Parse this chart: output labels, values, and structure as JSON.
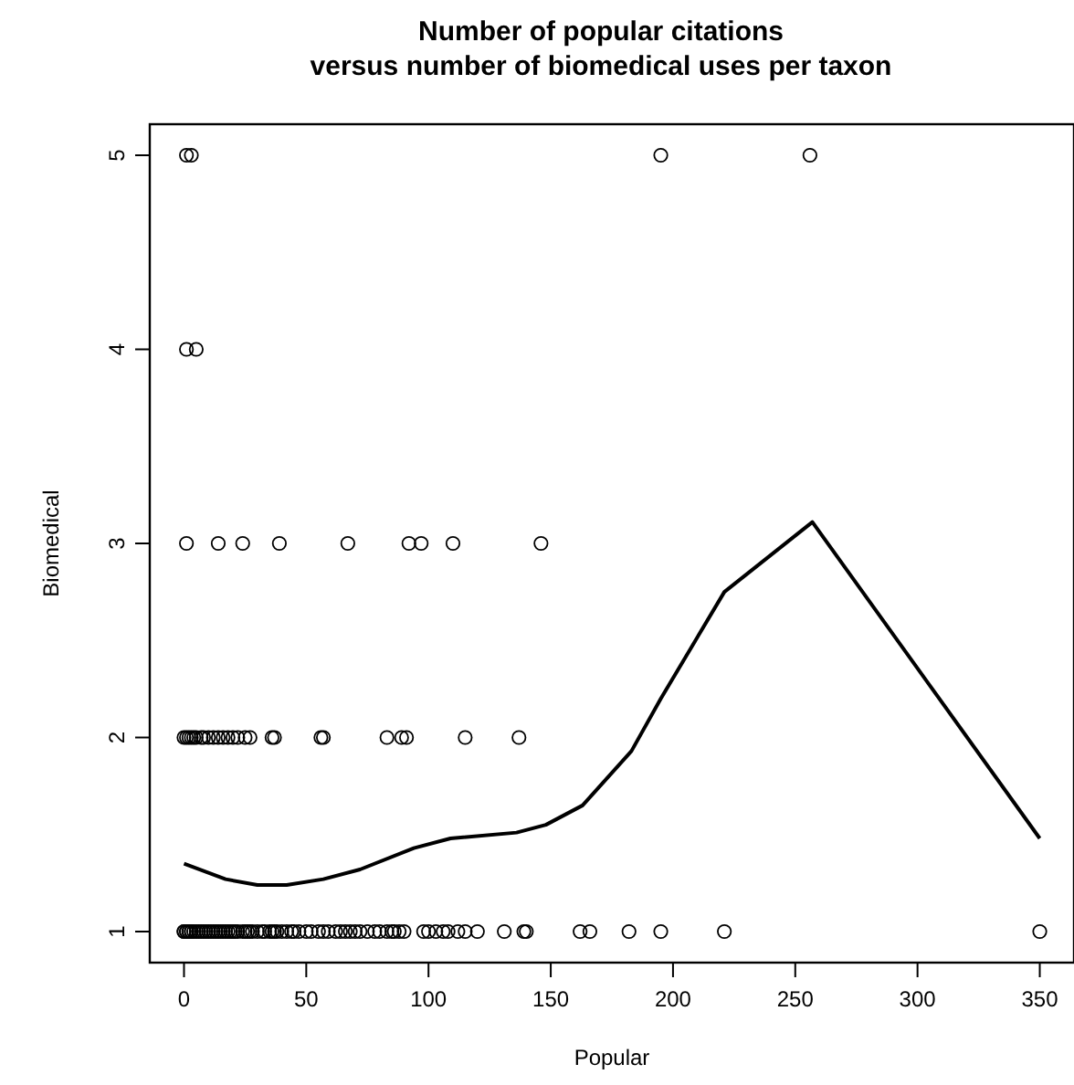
{
  "chart_data": {
    "type": "scatter",
    "title": "Number of popular citations\nversus number of biomedical uses per taxon",
    "xlabel": "Popular",
    "ylabel": "Biomedical",
    "xlim": [
      -14,
      364
    ],
    "ylim": [
      0.84,
      5.16
    ],
    "xticks": [
      0,
      50,
      100,
      150,
      200,
      250,
      300,
      350
    ],
    "yticks": [
      1,
      2,
      3,
      4,
      5
    ],
    "grid": false,
    "marker": "circle",
    "series": [
      {
        "color": "#000000",
        "x": [
          1,
          3,
          195,
          256,
          1,
          5,
          1,
          14,
          24,
          39,
          67,
          92,
          97,
          110,
          146,
          0,
          1,
          2,
          3,
          4,
          5,
          7,
          8,
          10,
          12,
          14,
          16,
          18,
          20,
          22,
          25,
          27,
          36,
          37,
          56,
          57,
          83,
          89,
          91,
          115,
          137,
          0,
          0,
          1,
          1,
          2,
          2,
          3,
          3,
          4,
          5,
          6,
          7,
          8,
          9,
          10,
          11,
          12,
          13,
          14,
          15,
          16,
          17,
          18,
          19,
          20,
          21,
          22,
          24,
          25,
          26,
          27,
          28,
          30,
          32,
          33,
          35,
          36,
          37,
          38,
          40,
          42,
          44,
          45,
          47,
          50,
          52,
          55,
          57,
          59,
          62,
          64,
          66,
          68,
          70,
          72,
          75,
          78,
          80,
          83,
          85,
          86,
          88,
          90,
          98,
          100,
          103,
          106,
          108,
          112,
          115,
          120,
          131,
          139,
          140,
          162,
          166,
          182,
          195,
          221,
          350
        ],
        "values": [
          5,
          5,
          5,
          5,
          4,
          4,
          3,
          3,
          3,
          3,
          3,
          3,
          3,
          3,
          3,
          2,
          2,
          2,
          2,
          2,
          2,
          2,
          2,
          2,
          2,
          2,
          2,
          2,
          2,
          2,
          2,
          2,
          2,
          2,
          2,
          2,
          2,
          2,
          2,
          2,
          2,
          1,
          1,
          1,
          1,
          1,
          1,
          1,
          1,
          1,
          1,
          1,
          1,
          1,
          1,
          1,
          1,
          1,
          1,
          1,
          1,
          1,
          1,
          1,
          1,
          1,
          1,
          1,
          1,
          1,
          1,
          1,
          1,
          1,
          1,
          1,
          1,
          1,
          1,
          1,
          1,
          1,
          1,
          1,
          1,
          1,
          1,
          1,
          1,
          1,
          1,
          1,
          1,
          1,
          1,
          1,
          1,
          1,
          1,
          1,
          1,
          1,
          1,
          1,
          1,
          1,
          1,
          1,
          1,
          1,
          1,
          1,
          1,
          1,
          1,
          1,
          1,
          1,
          1,
          1,
          1
        ]
      },
      {
        "type": "line",
        "color": "#000000",
        "line_style": "solid",
        "marker": "none",
        "x": [
          0,
          17,
          30,
          42,
          57,
          72,
          94,
          109,
          136,
          148,
          163,
          183,
          195,
          221,
          257,
          350
        ],
        "values": [
          1.35,
          1.27,
          1.24,
          1.24,
          1.27,
          1.32,
          1.43,
          1.48,
          1.51,
          1.55,
          1.65,
          1.93,
          2.2,
          2.75,
          3.11,
          1.48
        ]
      }
    ]
  }
}
